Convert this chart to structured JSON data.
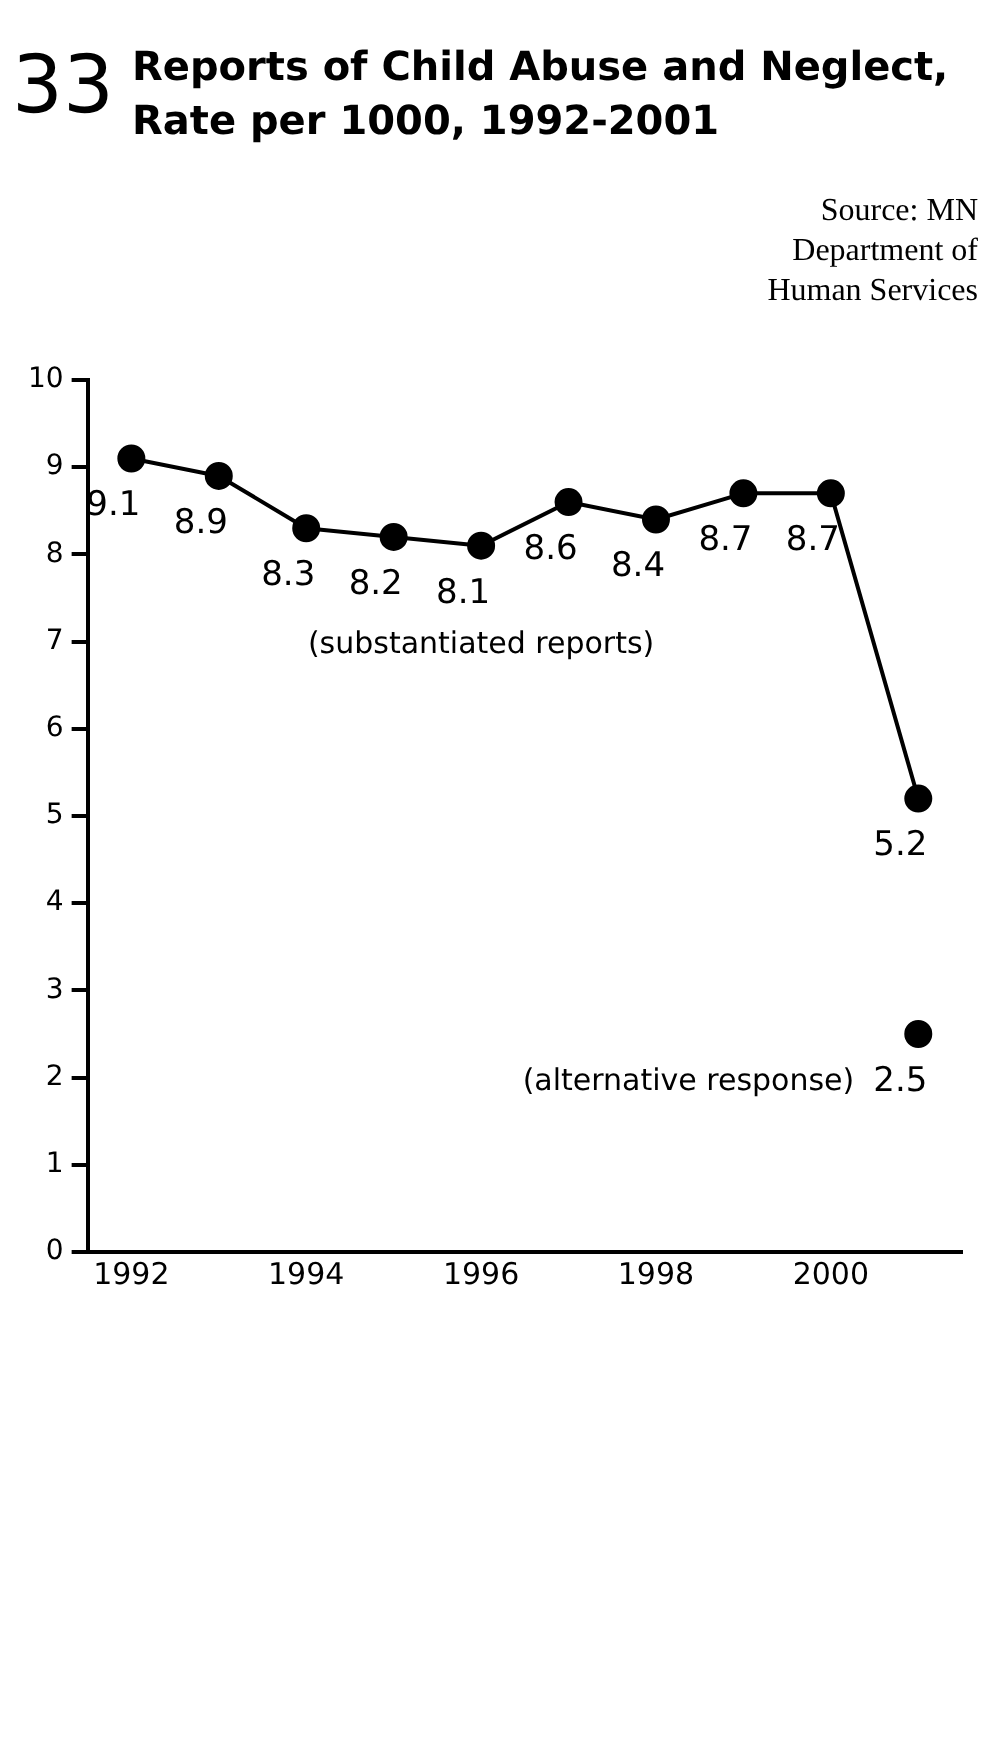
{
  "chart_data": {
    "type": "line",
    "title": "Reports of Child Abuse and Neglect, Rate per 1000, 1992-2001",
    "annotations": [
      "33",
      "Source: MN\nDepartment of\nHuman Services"
    ],
    "x": [
      1992,
      1993,
      1994,
      1995,
      1996,
      1997,
      1998,
      1999,
      2000,
      2001
    ],
    "series": [
      {
        "name": "(substantiated reports)",
        "color": "#000000",
        "values": [
          9.1,
          8.9,
          8.3,
          8.2,
          8.1,
          8.6,
          8.4,
          8.7,
          8.7,
          5.2
        ]
      },
      {
        "name": "(alternative response)",
        "color": "#000000",
        "type": "scatter",
        "x": [
          2001
        ],
        "values": [
          2.5
        ]
      }
    ],
    "xlim": [
      1991.5,
      2001.5
    ],
    "xticks": [
      1992,
      1994,
      1996,
      1998,
      2000
    ],
    "ylim": [
      0,
      10
    ],
    "yticks": [
      0,
      1,
      2,
      3,
      4,
      5,
      6,
      7,
      8,
      9,
      10
    ],
    "grid": false,
    "legend": false,
    "marker": "circle",
    "data_labels": true
  }
}
